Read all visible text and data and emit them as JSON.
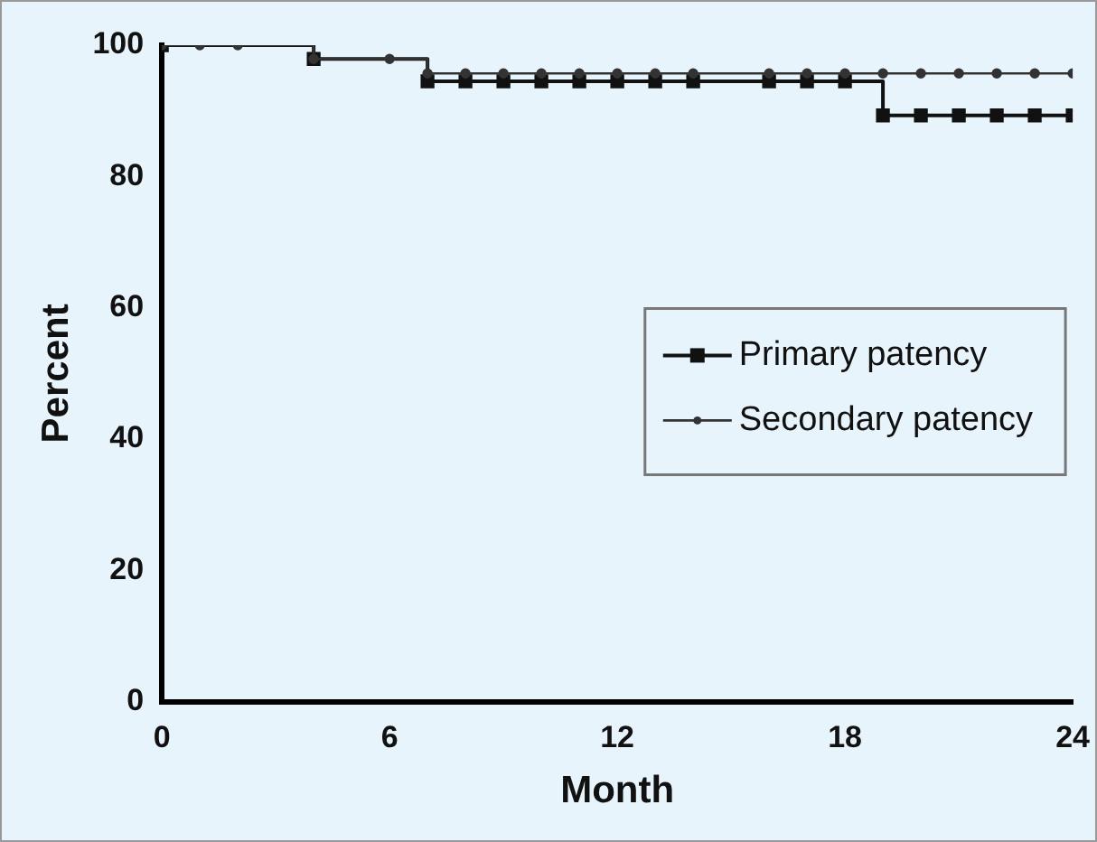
{
  "chart_data": {
    "type": "step",
    "xlabel": "Month",
    "ylabel": "Percent",
    "xlim": [
      0,
      24
    ],
    "xticks": [
      0,
      6,
      12,
      18,
      24
    ],
    "ylim": [
      0,
      100
    ],
    "yticks": [
      0,
      20,
      40,
      60,
      80,
      100
    ],
    "legend": "right",
    "series": [
      {
        "name": "Primary patency",
        "color": "#111111",
        "marker": "square",
        "x": [
          0,
          4,
          7,
          8,
          9,
          10,
          11,
          12,
          13,
          14,
          16,
          17,
          18,
          19,
          20,
          21,
          22,
          23,
          24
        ],
        "values": [
          100,
          97.9,
          94.5,
          94.5,
          94.5,
          94.5,
          94.5,
          94.5,
          94.5,
          94.5,
          94.5,
          94.5,
          94.5,
          89.3,
          89.3,
          89.3,
          89.3,
          89.3,
          89.3
        ]
      },
      {
        "name": "Secondary patency",
        "color": "#333333",
        "marker": "circle",
        "x": [
          0,
          1,
          2,
          4,
          6,
          7,
          8,
          9,
          10,
          11,
          12,
          13,
          14,
          16,
          17,
          18,
          19,
          20,
          21,
          22,
          23,
          24
        ],
        "values": [
          100,
          100,
          100,
          97.9,
          97.9,
          95.7,
          95.7,
          95.7,
          95.7,
          95.7,
          95.7,
          95.7,
          95.7,
          95.7,
          95.7,
          95.7,
          95.7,
          95.7,
          95.7,
          95.7,
          95.7,
          95.7
        ]
      }
    ]
  }
}
